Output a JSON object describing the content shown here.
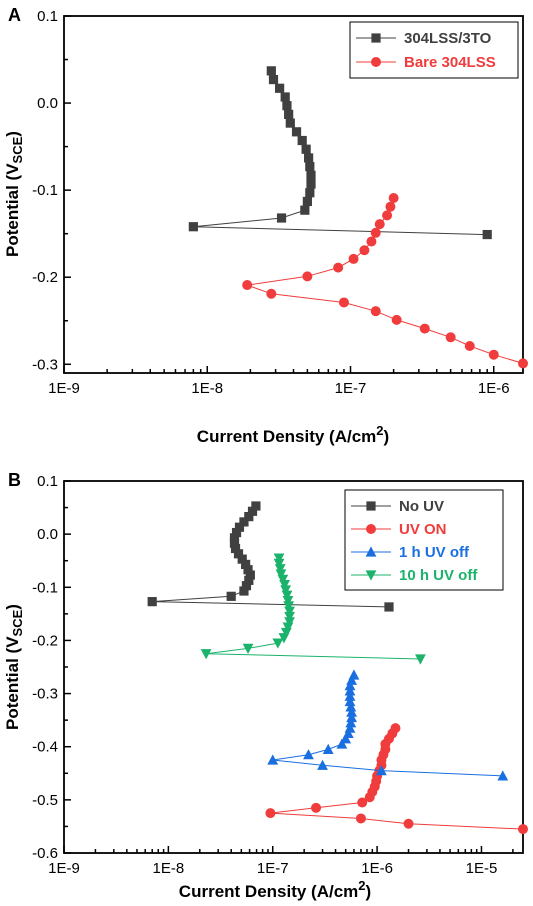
{
  "chart_data": [
    {
      "panel": "A",
      "type": "scatter",
      "xlabel_main": "Current Density (A/cm",
      "xlabel_sup": "2",
      "xlabel_end": ")",
      "ylabel_main": "Potential (V",
      "ylabel_sub": "SCE",
      "ylabel_end": ")",
      "xscale": "log",
      "xlim": [
        1e-09,
        1.6e-06
      ],
      "ylim": [
        -0.31,
        0.1
      ],
      "xticks": [
        {
          "v": 1e-09,
          "label": "1E-9"
        },
        {
          "v": 1e-08,
          "label": "1E-8"
        },
        {
          "v": 1e-07,
          "label": "1E-7"
        },
        {
          "v": 1e-06,
          "label": "1E-6"
        }
      ],
      "yticks": [
        {
          "v": 0.1,
          "label": "0.1"
        },
        {
          "v": 0.0,
          "label": "0.0"
        },
        {
          "v": -0.1,
          "label": "-0.1"
        },
        {
          "v": -0.2,
          "label": "-0.2"
        },
        {
          "v": -0.3,
          "label": "-0.3"
        }
      ],
      "legend_position": "top-right",
      "series": [
        {
          "name": "304LSS/3TO",
          "color": "#404040",
          "marker": "square",
          "points": [
            [
              2.8e-08,
              0.037
            ],
            [
              2.9e-08,
              0.027
            ],
            [
              3.2e-08,
              0.017
            ],
            [
              3.5e-08,
              0.007
            ],
            [
              3.6e-08,
              -0.003
            ],
            [
              3.7e-08,
              -0.013
            ],
            [
              3.8e-08,
              -0.023
            ],
            [
              4.2e-08,
              -0.033
            ],
            [
              4.6e-08,
              -0.043
            ],
            [
              4.9e-08,
              -0.053
            ],
            [
              5.1e-08,
              -0.063
            ],
            [
              5.2e-08,
              -0.073
            ],
            [
              5.3e-08,
              -0.083
            ],
            [
              5.3e-08,
              -0.093
            ],
            [
              5.2e-08,
              -0.103
            ],
            [
              5e-08,
              -0.113
            ],
            [
              4.8e-08,
              -0.123
            ],
            [
              3.3e-08,
              -0.132
            ],
            [
              8e-09,
              -0.142
            ],
            [
              9e-07,
              -0.151
            ]
          ]
        },
        {
          "name": "Bare 304LSS",
          "color": "#f03c3c",
          "marker": "circle",
          "points": [
            [
              2e-07,
              -0.109
            ],
            [
              1.9e-07,
              -0.119
            ],
            [
              1.8e-07,
              -0.129
            ],
            [
              1.6e-07,
              -0.139
            ],
            [
              1.5e-07,
              -0.149
            ],
            [
              1.4e-07,
              -0.159
            ],
            [
              1.25e-07,
              -0.169
            ],
            [
              1.05e-07,
              -0.179
            ],
            [
              8.2e-08,
              -0.189
            ],
            [
              5e-08,
              -0.199
            ],
            [
              1.9e-08,
              -0.209
            ],
            [
              2.8e-08,
              -0.219
            ],
            [
              9e-08,
              -0.229
            ],
            [
              1.5e-07,
              -0.239
            ],
            [
              2.1e-07,
              -0.249
            ],
            [
              3.3e-07,
              -0.259
            ],
            [
              5e-07,
              -0.269
            ],
            [
              6.8e-07,
              -0.279
            ],
            [
              1e-06,
              -0.289
            ],
            [
              1.6e-06,
              -0.299
            ]
          ]
        }
      ]
    },
    {
      "panel": "B",
      "type": "scatter",
      "xlabel_main": "Current Density (A/cm",
      "xlabel_sup": "2",
      "xlabel_end": ")",
      "ylabel_main": "Potential (V",
      "ylabel_sub": "SCE",
      "ylabel_end": ")",
      "xscale": "log",
      "xlim": [
        1e-09,
        2.5e-05
      ],
      "ylim": [
        -0.6,
        0.1
      ],
      "xticks": [
        {
          "v": 1e-09,
          "label": "1E-9"
        },
        {
          "v": 1e-08,
          "label": "1E-8"
        },
        {
          "v": 1e-07,
          "label": "1E-7"
        },
        {
          "v": 1e-06,
          "label": "1E-6"
        },
        {
          "v": 1e-05,
          "label": "1E-5"
        }
      ],
      "yticks": [
        {
          "v": 0.1,
          "label": "0.1"
        },
        {
          "v": 0.0,
          "label": "0.0"
        },
        {
          "v": -0.1,
          "label": "-0.1"
        },
        {
          "v": -0.2,
          "label": "-0.2"
        },
        {
          "v": -0.3,
          "label": "-0.3"
        },
        {
          "v": -0.4,
          "label": "-0.4"
        },
        {
          "v": -0.5,
          "label": "-0.5"
        },
        {
          "v": -0.6,
          "label": "-0.6"
        }
      ],
      "legend_position": "top-right",
      "series": [
        {
          "name": "No UV",
          "color": "#404040",
          "marker": "square",
          "points": [
            [
              6.9e-08,
              0.053
            ],
            [
              6.4e-08,
              0.043
            ],
            [
              5.9e-08,
              0.033
            ],
            [
              5.3e-08,
              0.023
            ],
            [
              4.8e-08,
              0.013
            ],
            [
              4.5e-08,
              0.003
            ],
            [
              4.3e-08,
              -0.007
            ],
            [
              4.3e-08,
              -0.017
            ],
            [
              4.4e-08,
              -0.027
            ],
            [
              4.7e-08,
              -0.037
            ],
            [
              5.1e-08,
              -0.047
            ],
            [
              5.5e-08,
              -0.057
            ],
            [
              5.8e-08,
              -0.067
            ],
            [
              6.1e-08,
              -0.077
            ],
            [
              5.9e-08,
              -0.087
            ],
            [
              5.6e-08,
              -0.097
            ],
            [
              5.3e-08,
              -0.107
            ],
            [
              4e-08,
              -0.117
            ],
            [
              7e-09,
              -0.127
            ],
            [
              1.3e-06,
              -0.137
            ]
          ]
        },
        {
          "name": "UV ON",
          "color": "#f03c3c",
          "marker": "circle",
          "points": [
            [
              1.5e-06,
              -0.365
            ],
            [
              1.4e-06,
              -0.375
            ],
            [
              1.3e-06,
              -0.385
            ],
            [
              1.2e-06,
              -0.395
            ],
            [
              1.2e-06,
              -0.405
            ],
            [
              1.15e-06,
              -0.415
            ],
            [
              1.1e-06,
              -0.425
            ],
            [
              1.1e-06,
              -0.435
            ],
            [
              1.05e-06,
              -0.445
            ],
            [
              1e-06,
              -0.455
            ],
            [
              9.8e-07,
              -0.465
            ],
            [
              9.5e-07,
              -0.475
            ],
            [
              9e-07,
              -0.485
            ],
            [
              8.5e-07,
              -0.495
            ],
            [
              7.2e-07,
              -0.505
            ],
            [
              2.6e-07,
              -0.515
            ],
            [
              9.5e-08,
              -0.525
            ],
            [
              7e-07,
              -0.535
            ],
            [
              2e-06,
              -0.545
            ],
            [
              2.5e-05,
              -0.555
            ]
          ]
        },
        {
          "name": "1 h UV off",
          "color": "#1a6fe0",
          "marker": "triangle-up",
          "points": [
            [
              6e-07,
              -0.265
            ],
            [
              5.7e-07,
              -0.275
            ],
            [
              5.5e-07,
              -0.285
            ],
            [
              5.5e-07,
              -0.295
            ],
            [
              5.5e-07,
              -0.305
            ],
            [
              5.5e-07,
              -0.315
            ],
            [
              5.6e-07,
              -0.325
            ],
            [
              5.7e-07,
              -0.335
            ],
            [
              5.7e-07,
              -0.345
            ],
            [
              5.6e-07,
              -0.355
            ],
            [
              5.5e-07,
              -0.365
            ],
            [
              5.3e-07,
              -0.375
            ],
            [
              5e-07,
              -0.385
            ],
            [
              4.6e-07,
              -0.395
            ],
            [
              3.4e-07,
              -0.405
            ],
            [
              2.2e-07,
              -0.415
            ],
            [
              1e-07,
              -0.425
            ],
            [
              3e-07,
              -0.435
            ],
            [
              1.1e-06,
              -0.445
            ],
            [
              1.6e-05,
              -0.455
            ]
          ]
        },
        {
          "name": "10 h UV off",
          "color": "#1bb36b",
          "marker": "triangle-down",
          "points": [
            [
              1.15e-07,
              -0.045
            ],
            [
              1.15e-07,
              -0.055
            ],
            [
              1.18e-07,
              -0.065
            ],
            [
              1.2e-07,
              -0.075
            ],
            [
              1.25e-07,
              -0.085
            ],
            [
              1.3e-07,
              -0.095
            ],
            [
              1.33e-07,
              -0.105
            ],
            [
              1.37e-07,
              -0.115
            ],
            [
              1.4e-07,
              -0.125
            ],
            [
              1.42e-07,
              -0.135
            ],
            [
              1.45e-07,
              -0.145
            ],
            [
              1.45e-07,
              -0.155
            ],
            [
              1.45e-07,
              -0.165
            ],
            [
              1.4e-07,
              -0.175
            ],
            [
              1.35e-07,
              -0.185
            ],
            [
              1.28e-07,
              -0.195
            ],
            [
              1.12e-07,
              -0.205
            ],
            [
              5.8e-08,
              -0.215
            ],
            [
              2.3e-08,
              -0.225
            ],
            [
              2.6e-06,
              -0.235
            ]
          ]
        }
      ]
    }
  ]
}
